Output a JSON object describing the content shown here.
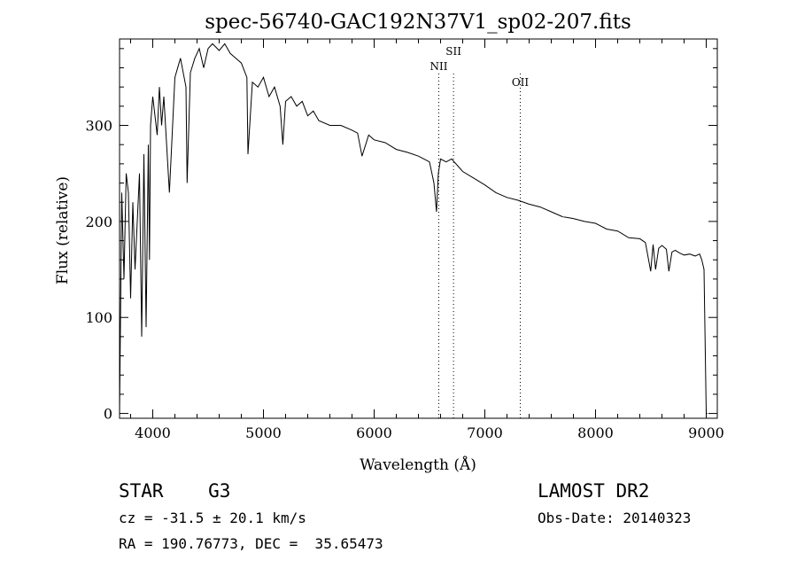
{
  "chart_data": {
    "type": "line",
    "title": "spec-56740-GAC192N37V1_sp02-207.fits",
    "xlabel": "Wavelength (Å)",
    "ylabel": "Flux (relative)",
    "xlim": [
      3700,
      9100
    ],
    "ylim": [
      -5,
      390
    ],
    "xticks": [
      4000,
      5000,
      6000,
      7000,
      8000,
      9000
    ],
    "yticks": [
      0,
      100,
      200,
      300
    ],
    "grid": false,
    "series": [
      {
        "x": [
          3700,
          3720,
          3740,
          3760,
          3780,
          3800,
          3820,
          3840,
          3860,
          3880,
          3900,
          3920,
          3940,
          3960,
          3970,
          3980,
          4000,
          4020,
          4040,
          4060,
          4080,
          4100,
          4150,
          4200,
          4250,
          4300,
          4310,
          4340,
          4380,
          4420,
          4460,
          4500,
          4540,
          4600,
          4650,
          4700,
          4750,
          4800,
          4850,
          4860,
          4900,
          4950,
          5000,
          5050,
          5100,
          5150,
          5175,
          5200,
          5250,
          5300,
          5350,
          5400,
          5450,
          5500,
          5600,
          5700,
          5800,
          5850,
          5890,
          5950,
          6000,
          6100,
          6200,
          6300,
          6400,
          6450,
          6500,
          6540,
          6563,
          6580,
          6600,
          6650,
          6700,
          6800,
          6900,
          7000,
          7100,
          7200,
          7300,
          7400,
          7500,
          7600,
          7700,
          7800,
          7900,
          8000,
          8100,
          8200,
          8300,
          8400,
          8450,
          8498,
          8520,
          8542,
          8570,
          8600,
          8640,
          8662,
          8690,
          8720,
          8760,
          8800,
          8850,
          8900,
          8940,
          8960,
          8980,
          9000,
          9010
        ],
        "y": [
          0,
          230,
          140,
          250,
          230,
          120,
          220,
          150,
          200,
          250,
          80,
          270,
          90,
          280,
          160,
          300,
          330,
          310,
          290,
          340,
          300,
          330,
          230,
          350,
          370,
          340,
          240,
          355,
          370,
          380,
          360,
          380,
          385,
          378,
          385,
          375,
          370,
          365,
          350,
          270,
          345,
          340,
          350,
          330,
          340,
          320,
          280,
          325,
          330,
          320,
          325,
          310,
          315,
          305,
          300,
          300,
          295,
          292,
          268,
          290,
          285,
          282,
          275,
          272,
          268,
          265,
          262,
          240,
          210,
          250,
          265,
          262,
          265,
          252,
          245,
          238,
          230,
          225,
          222,
          218,
          215,
          210,
          205,
          203,
          200,
          198,
          192,
          190,
          183,
          182,
          178,
          148,
          176,
          150,
          172,
          175,
          171,
          148,
          168,
          170,
          167,
          165,
          166,
          164,
          166,
          160,
          150,
          0,
          0
        ]
      }
    ],
    "annotations": [
      {
        "label": "NII",
        "x": 6584
      },
      {
        "label": "OII",
        "x": 7320
      },
      {
        "label": "SII",
        "x": 6717
      }
    ]
  },
  "info": {
    "class_line": "STAR    G3",
    "survey": "LAMOST DR2",
    "cz_line": "cz = -31.5 ± 20.1 km/s",
    "obs_date": "Obs-Date: 20140323",
    "radec_line": "RA = 190.76773, DEC =  35.65473"
  }
}
